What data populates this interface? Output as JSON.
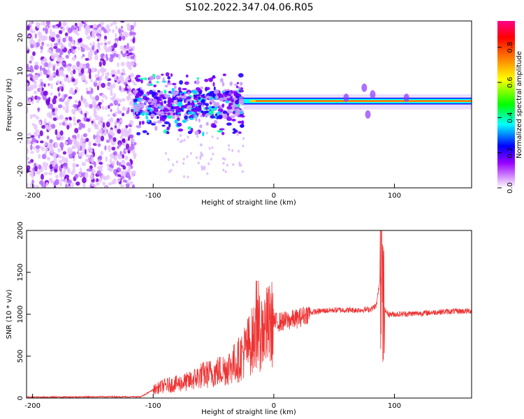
{
  "title": "S102.2022.347.04.06.R05",
  "chart_data": [
    {
      "type": "heatmap",
      "xlabel": "Height of straight line (km)",
      "ylabel": "Frequency (Hz)",
      "xlim": [
        -205,
        164
      ],
      "ylim": [
        -25,
        25
      ],
      "xticks": [
        -200,
        -100,
        0,
        100
      ],
      "yticks": [
        -20,
        -10,
        0,
        10,
        20
      ],
      "colorbar": {
        "label": "Normalized spectral amplitude",
        "range": [
          0,
          0.95
        ],
        "ticks": [
          0.0,
          0.2,
          0.4,
          0.6,
          0.8
        ],
        "tick_labels": [
          "0.0",
          "0.2",
          "0.4",
          "0.6",
          "0.8"
        ],
        "colormap": [
          "#ffffff",
          "#cc00ff",
          "#0000ff",
          "#00ffff",
          "#00ff00",
          "#ffff00",
          "#ff0000",
          "#ff0088"
        ]
      },
      "regions": [
        {
          "x": [
            -205,
            -115
          ],
          "y": [
            -25,
            25
          ],
          "description": "sparse purple noise"
        },
        {
          "x": [
            -115,
            -25
          ],
          "y": [
            -8,
            8
          ],
          "description": "blue/cyan patchy band"
        },
        {
          "x": [
            -25,
            164
          ],
          "y": [
            0,
            2
          ],
          "description": "narrow red line near 1 Hz"
        }
      ]
    },
    {
      "type": "line",
      "xlabel": "Height of straight line (km)",
      "ylabel": "SNR (10 * v/v)",
      "xlim": [
        -205,
        164
      ],
      "ylim": [
        0,
        2000
      ],
      "xticks": [
        -200,
        -100,
        0,
        100
      ],
      "yticks": [
        0,
        500,
        1000,
        1500,
        2000
      ],
      "series": [
        {
          "color": "#ee3333",
          "x": [
            -205,
            -150,
            -110,
            -100,
            -90,
            -80,
            -70,
            -60,
            -50,
            -40,
            -30,
            -20,
            -10,
            0,
            10,
            20,
            30,
            40,
            50,
            60,
            70,
            80,
            85,
            88,
            90,
            92,
            95,
            100,
            120,
            140,
            164
          ],
          "y": [
            10,
            15,
            15,
            100,
            150,
            170,
            200,
            270,
            300,
            350,
            440,
            650,
            800,
            900,
            920,
            950,
            1020,
            1040,
            1050,
            1050,
            1050,
            1060,
            1100,
            1400,
            1000,
            1050,
            1000,
            1000,
            1010,
            1030,
            1040
          ]
        }
      ]
    }
  ]
}
